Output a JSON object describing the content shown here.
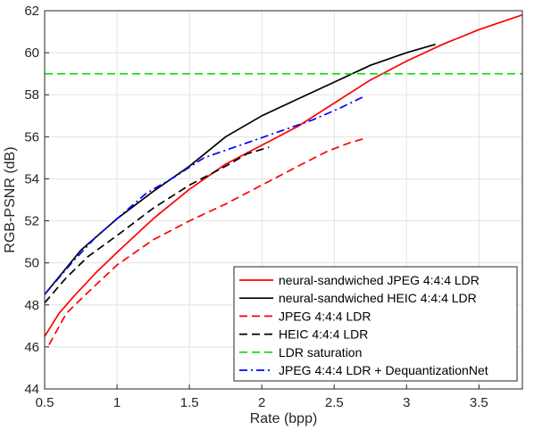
{
  "chart_data": {
    "type": "line",
    "xlabel": "Rate (bpp)",
    "ylabel": "RGB-PSNR (dB)",
    "xlim": [
      0.5,
      3.8
    ],
    "ylim": [
      44,
      62
    ],
    "xticks": [
      "0.5",
      "1",
      "1.5",
      "2",
      "2.5",
      "3",
      "3.5"
    ],
    "yticks": [
      "44",
      "46",
      "48",
      "50",
      "52",
      "54",
      "56",
      "58",
      "60",
      "62"
    ],
    "grid": true,
    "box": true,
    "legend_position": "bottom-right",
    "series": [
      {
        "name": "neural-sandwiched JPEG 4:4:4 LDR",
        "color": "#ff0000",
        "dash": "solid",
        "points": [
          [
            0.5,
            46.5
          ],
          [
            0.6,
            47.6
          ],
          [
            0.7,
            48.4
          ],
          [
            0.85,
            49.5
          ],
          [
            1.0,
            50.5
          ],
          [
            1.25,
            52.1
          ],
          [
            1.5,
            53.5
          ],
          [
            1.75,
            54.7
          ],
          [
            2.0,
            55.6
          ],
          [
            2.25,
            56.5
          ],
          [
            2.5,
            57.6
          ],
          [
            2.75,
            58.7
          ],
          [
            3.0,
            59.6
          ],
          [
            3.25,
            60.4
          ],
          [
            3.5,
            61.1
          ],
          [
            3.8,
            61.8
          ]
        ]
      },
      {
        "name": "neural-sandwiched HEIC 4:4:4 LDR",
        "color": "#000000",
        "dash": "solid",
        "points": [
          [
            0.5,
            48.5
          ],
          [
            0.75,
            50.6
          ],
          [
            1.0,
            52.1
          ],
          [
            1.25,
            53.4
          ],
          [
            1.5,
            54.6
          ],
          [
            1.75,
            56.0
          ],
          [
            2.0,
            57.0
          ],
          [
            2.25,
            57.8
          ],
          [
            2.5,
            58.6
          ],
          [
            2.75,
            59.4
          ],
          [
            3.0,
            60.0
          ],
          [
            3.2,
            60.4
          ]
        ]
      },
      {
        "name": "JPEG 4:4:4 LDR",
        "color": "#ff0000",
        "dash": "dashed",
        "points": [
          [
            0.53,
            46.1
          ],
          [
            0.65,
            47.6
          ],
          [
            0.8,
            48.6
          ],
          [
            1.0,
            49.9
          ],
          [
            1.25,
            51.1
          ],
          [
            1.5,
            52.0
          ],
          [
            1.75,
            52.8
          ],
          [
            2.0,
            53.7
          ],
          [
            2.25,
            54.6
          ],
          [
            2.45,
            55.3
          ],
          [
            2.6,
            55.7
          ],
          [
            2.7,
            55.9
          ]
        ]
      },
      {
        "name": "HEIC 4:4:4 LDR",
        "color": "#000000",
        "dash": "dashed",
        "points": [
          [
            0.5,
            48.1
          ],
          [
            0.65,
            49.3
          ],
          [
            0.8,
            50.3
          ],
          [
            1.0,
            51.3
          ],
          [
            1.25,
            52.6
          ],
          [
            1.5,
            53.7
          ],
          [
            1.75,
            54.6
          ],
          [
            1.9,
            55.2
          ],
          [
            2.05,
            55.5
          ]
        ]
      },
      {
        "name": "LDR saturation",
        "color": "#00dd00",
        "dash": "dashed",
        "points": [
          [
            0.5,
            59.0
          ],
          [
            3.8,
            59.0
          ]
        ]
      },
      {
        "name": "JPEG 4:4:4 LDR + DequantizationNet",
        "color": "#0000ff",
        "dash": "dashdot",
        "points": [
          [
            0.5,
            48.5
          ],
          [
            0.7,
            50.1
          ],
          [
            0.85,
            51.2
          ],
          [
            1.0,
            52.1
          ],
          [
            1.2,
            53.3
          ],
          [
            1.4,
            54.1
          ],
          [
            1.6,
            55.0
          ],
          [
            1.85,
            55.6
          ],
          [
            2.1,
            56.2
          ],
          [
            2.35,
            56.8
          ],
          [
            2.55,
            57.4
          ],
          [
            2.7,
            57.9
          ]
        ]
      }
    ]
  }
}
